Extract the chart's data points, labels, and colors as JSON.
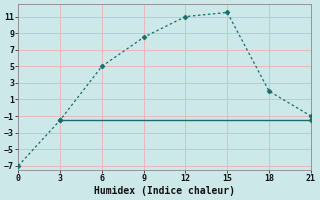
{
  "xlabel": "Humidex (Indice chaleur)",
  "background_color": "#cce8e8",
  "grid_color": "#e8b8bc",
  "line_color": "#1a6b6b",
  "line1_x": [
    0,
    3,
    6,
    9,
    12,
    15,
    18,
    21
  ],
  "line1_y": [
    -7,
    -1.5,
    5,
    8.5,
    11,
    11.5,
    2,
    -1
  ],
  "line2_x": [
    3,
    9,
    18,
    21
  ],
  "line2_y": [
    -1.5,
    -1.5,
    -1.5,
    -1.5
  ],
  "xlim": [
    0,
    21
  ],
  "ylim": [
    -7.5,
    12.5
  ],
  "xticks": [
    0,
    3,
    6,
    9,
    12,
    15,
    18,
    21
  ],
  "yticks": [
    -7,
    -5,
    -3,
    -1,
    1,
    3,
    5,
    7,
    9,
    11
  ],
  "marker": "D",
  "marker_size": 2.5,
  "line1_style": "--",
  "line2_style": "-",
  "tick_fontsize": 6,
  "xlabel_fontsize": 7
}
